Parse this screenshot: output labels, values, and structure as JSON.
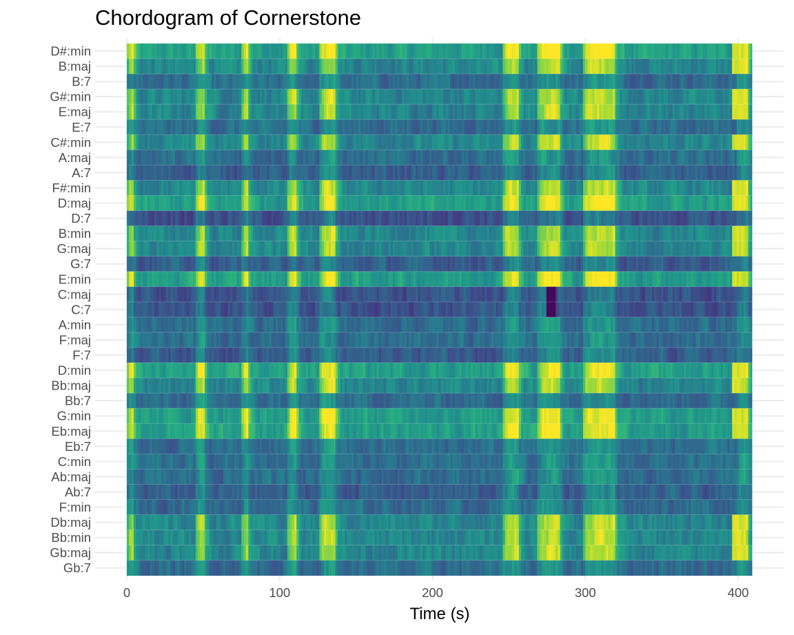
{
  "chart_data": {
    "type": "heatmap",
    "title": "Chordogram of Cornerstone",
    "xlabel": "Time (s)",
    "ylabel": "",
    "xlim": [
      0,
      409
    ],
    "x_ticks": [
      0,
      100,
      200,
      300,
      400
    ],
    "colormap": "viridis",
    "grid": true,
    "legend": "none",
    "rows": [
      {
        "chord": "D#:min",
        "profile": "bright"
      },
      {
        "chord": "B:maj",
        "profile": "mid"
      },
      {
        "chord": "B:7",
        "profile": "dark"
      },
      {
        "chord": "G#:min",
        "profile": "mid"
      },
      {
        "chord": "E:maj",
        "profile": "mid"
      },
      {
        "chord": "E:7",
        "profile": "dark"
      },
      {
        "chord": "C#:min",
        "profile": "mid"
      },
      {
        "chord": "A:maj",
        "profile": "dark"
      },
      {
        "chord": "A:7",
        "profile": "darker"
      },
      {
        "chord": "F#:min",
        "profile": "mid"
      },
      {
        "chord": "D:maj",
        "profile": "bright"
      },
      {
        "chord": "D:7",
        "profile": "darkest"
      },
      {
        "chord": "B:min",
        "profile": "mid"
      },
      {
        "chord": "G:maj",
        "profile": "mid"
      },
      {
        "chord": "G:7",
        "profile": "darker"
      },
      {
        "chord": "E:min",
        "profile": "bright"
      },
      {
        "chord": "C:maj",
        "profile": "darkest"
      },
      {
        "chord": "C:7",
        "profile": "darkest"
      },
      {
        "chord": "A:min",
        "profile": "dark"
      },
      {
        "chord": "F:maj",
        "profile": "dark"
      },
      {
        "chord": "F:7",
        "profile": "darker"
      },
      {
        "chord": "D:min",
        "profile": "bright"
      },
      {
        "chord": "Bb:maj",
        "profile": "mid"
      },
      {
        "chord": "Bb:7",
        "profile": "dark"
      },
      {
        "chord": "G:min",
        "profile": "bright"
      },
      {
        "chord": "Eb:maj",
        "profile": "bright"
      },
      {
        "chord": "Eb:7",
        "profile": "dark"
      },
      {
        "chord": "C:min",
        "profile": "dark"
      },
      {
        "chord": "Ab:maj",
        "profile": "dark"
      },
      {
        "chord": "Ab:7",
        "profile": "darker"
      },
      {
        "chord": "F:min",
        "profile": "dark"
      },
      {
        "chord": "Db:maj",
        "profile": "mid"
      },
      {
        "chord": "Bb:min",
        "profile": "mid"
      },
      {
        "chord": "Gb:maj",
        "profile": "mid"
      },
      {
        "chord": "Gb:7",
        "profile": "dark"
      }
    ],
    "bright_time_bands_s": [
      [
        0,
        3
      ],
      [
        45,
        50
      ],
      [
        75,
        79
      ],
      [
        105,
        110
      ],
      [
        125,
        135
      ],
      [
        245,
        255
      ],
      [
        268,
        272
      ],
      [
        270,
        282
      ],
      [
        298,
        318
      ],
      [
        398,
        405
      ]
    ]
  }
}
